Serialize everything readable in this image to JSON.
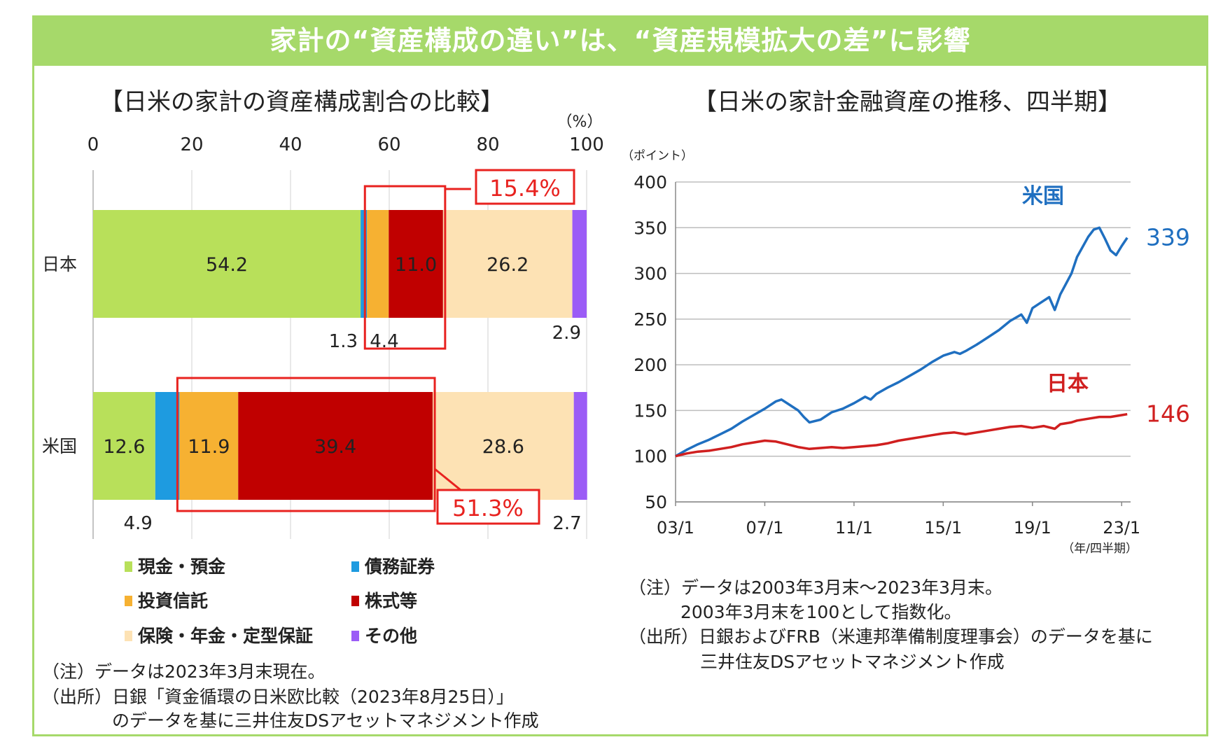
{
  "banner_title": "家計の“資産構成の違い”は、“資産規模拡大の差”に影響",
  "chart_data": [
    {
      "type": "bar",
      "orientation": "horizontal-stacked",
      "title": "【日米の家計の資産構成割合の比較】",
      "unit": "（%）",
      "xlim": [
        0,
        100
      ],
      "x_ticks": [
        "0",
        "20",
        "40",
        "60",
        "80",
        "100"
      ],
      "categories": [
        "日本",
        "米国"
      ],
      "series": [
        {
          "name": "現金・預金",
          "color": "#b8e05a",
          "values": [
            54.2,
            12.6
          ],
          "labels": [
            "54.2",
            "12.6"
          ]
        },
        {
          "name": "債務証券",
          "color": "#1e9be0",
          "values": [
            1.3,
            4.9
          ],
          "labels": [
            "1.3",
            "4.9"
          ]
        },
        {
          "name": "投資信託",
          "color": "#f6b132",
          "values": [
            4.4,
            11.9
          ],
          "labels": [
            "4.4",
            "11.9"
          ]
        },
        {
          "name": "株式等",
          "color": "#c00000",
          "values": [
            11.0,
            39.4
          ],
          "labels": [
            "11.0",
            "39.4"
          ]
        },
        {
          "name": "保険・年金・定型保証",
          "color": "#fde2b4",
          "values": [
            26.2,
            28.6
          ],
          "labels": [
            "26.2",
            "28.6"
          ]
        },
        {
          "name": "その他",
          "color": "#9b5cf6",
          "values": [
            2.9,
            2.7
          ],
          "labels": [
            "2.9",
            "2.7"
          ]
        }
      ],
      "callouts": [
        "15.4%",
        "51.3%"
      ],
      "notes": [
        "（注）データは2023年3月末現在。",
        "（出所）日銀「資金循環の日米欧比較（2023年8月25日）」",
        "のデータを基に三井住友DSアセットマネジメント作成"
      ]
    },
    {
      "type": "line",
      "title": "【日米の家計金融資産の推移、四半期】",
      "ylabel": "（ポイント）",
      "xlabel": "（年/四半期）",
      "ylim": [
        50,
        400
      ],
      "y_ticks": [
        "50",
        "100",
        "150",
        "200",
        "250",
        "300",
        "350",
        "400"
      ],
      "x_tick_labels": [
        "03/1",
        "07/1",
        "11/1",
        "15/1",
        "19/1",
        "23/1"
      ],
      "x_tick_values": [
        2003,
        2007,
        2011,
        2015,
        2019,
        2023
      ],
      "series": [
        {
          "name": "米国",
          "color": "#1f6fc0",
          "end_label": "339",
          "points": [
            [
              2003.0,
              100
            ],
            [
              2003.5,
              107
            ],
            [
              2004.0,
              113
            ],
            [
              2004.5,
              118
            ],
            [
              2005.0,
              124
            ],
            [
              2005.5,
              130
            ],
            [
              2006.0,
              138
            ],
            [
              2006.5,
              145
            ],
            [
              2007.0,
              152
            ],
            [
              2007.5,
              160
            ],
            [
              2007.75,
              162
            ],
            [
              2008.0,
              158
            ],
            [
              2008.5,
              150
            ],
            [
              2008.75,
              143
            ],
            [
              2009.0,
              137
            ],
            [
              2009.5,
              140
            ],
            [
              2010.0,
              148
            ],
            [
              2010.5,
              152
            ],
            [
              2011.0,
              158
            ],
            [
              2011.5,
              165
            ],
            [
              2011.75,
              162
            ],
            [
              2012.0,
              168
            ],
            [
              2012.5,
              175
            ],
            [
              2013.0,
              181
            ],
            [
              2013.5,
              188
            ],
            [
              2014.0,
              195
            ],
            [
              2014.5,
              203
            ],
            [
              2015.0,
              210
            ],
            [
              2015.5,
              214
            ],
            [
              2015.75,
              212
            ],
            [
              2016.0,
              215
            ],
            [
              2016.5,
              222
            ],
            [
              2017.0,
              230
            ],
            [
              2017.5,
              238
            ],
            [
              2018.0,
              248
            ],
            [
              2018.5,
              255
            ],
            [
              2018.75,
              246
            ],
            [
              2019.0,
              262
            ],
            [
              2019.5,
              270
            ],
            [
              2019.75,
              274
            ],
            [
              2020.0,
              260
            ],
            [
              2020.25,
              277
            ],
            [
              2020.75,
              300
            ],
            [
              2021.0,
              318
            ],
            [
              2021.5,
              340
            ],
            [
              2021.75,
              348
            ],
            [
              2022.0,
              350
            ],
            [
              2022.25,
              338
            ],
            [
              2022.5,
              325
            ],
            [
              2022.75,
              320
            ],
            [
              2023.0,
              330
            ],
            [
              2023.25,
              339
            ]
          ]
        },
        {
          "name": "日本",
          "color": "#d01f1f",
          "end_label": "146",
          "points": [
            [
              2003.0,
              100
            ],
            [
              2003.5,
              103
            ],
            [
              2004.0,
              105
            ],
            [
              2004.5,
              106
            ],
            [
              2005.0,
              108
            ],
            [
              2005.5,
              110
            ],
            [
              2006.0,
              113
            ],
            [
              2006.5,
              115
            ],
            [
              2007.0,
              117
            ],
            [
              2007.5,
              116
            ],
            [
              2008.0,
              113
            ],
            [
              2008.5,
              110
            ],
            [
              2009.0,
              108
            ],
            [
              2009.5,
              109
            ],
            [
              2010.0,
              110
            ],
            [
              2010.5,
              109
            ],
            [
              2011.0,
              110
            ],
            [
              2011.5,
              111
            ],
            [
              2012.0,
              112
            ],
            [
              2012.5,
              114
            ],
            [
              2013.0,
              117
            ],
            [
              2013.5,
              119
            ],
            [
              2014.0,
              121
            ],
            [
              2014.5,
              123
            ],
            [
              2015.0,
              125
            ],
            [
              2015.5,
              126
            ],
            [
              2016.0,
              124
            ],
            [
              2016.5,
              126
            ],
            [
              2017.0,
              128
            ],
            [
              2017.5,
              130
            ],
            [
              2018.0,
              132
            ],
            [
              2018.5,
              133
            ],
            [
              2019.0,
              131
            ],
            [
              2019.5,
              133
            ],
            [
              2020.0,
              130
            ],
            [
              2020.25,
              135
            ],
            [
              2020.75,
              137
            ],
            [
              2021.0,
              139
            ],
            [
              2021.5,
              141
            ],
            [
              2022.0,
              143
            ],
            [
              2022.5,
              143
            ],
            [
              2023.0,
              145
            ],
            [
              2023.25,
              146
            ]
          ]
        }
      ],
      "notes": [
        "（注）データは2003年3月末～2023年3月末。",
        "2003年3月末を100として指数化。",
        "（出所）日銀およびFRB（米連邦準備制度理事会）のデータを基に",
        "三井住友DSアセットマネジメント作成"
      ]
    }
  ]
}
